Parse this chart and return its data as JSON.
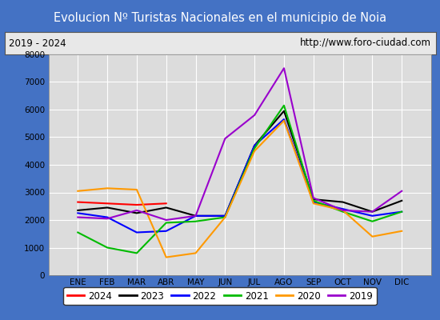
{
  "title": "Evolucion Nº Turistas Nacionales en el municipio de Noia",
  "subtitle_left": "2019 - 2024",
  "subtitle_right": "http://www.foro-ciudad.com",
  "title_bg_color": "#4472c4",
  "title_text_color": "#ffffff",
  "months": [
    "ENE",
    "FEB",
    "MAR",
    "ABR",
    "MAY",
    "JUN",
    "JUL",
    "AGO",
    "SEP",
    "OCT",
    "NOV",
    "DIC"
  ],
  "ylim": [
    0,
    8000
  ],
  "yticks": [
    0,
    1000,
    2000,
    3000,
    4000,
    5000,
    6000,
    7000,
    8000
  ],
  "series": {
    "2024": {
      "color": "#ff0000",
      "data": [
        2650,
        2600,
        2550,
        2600,
        null,
        null,
        null,
        null,
        null,
        null,
        null,
        null
      ]
    },
    "2023": {
      "color": "#000000",
      "data": [
        2350,
        2450,
        2250,
        2450,
        2150,
        2150,
        4700,
        5950,
        2750,
        2650,
        2300,
        2700
      ]
    },
    "2022": {
      "color": "#0000ff",
      "data": [
        2250,
        2100,
        1550,
        1600,
        2150,
        2150,
        4700,
        5650,
        2650,
        2400,
        2150,
        2300
      ]
    },
    "2021": {
      "color": "#00bb00",
      "data": [
        1550,
        1000,
        800,
        1900,
        1950,
        2100,
        4600,
        6150,
        2700,
        2300,
        1950,
        2300
      ]
    },
    "2020": {
      "color": "#ff9900",
      "data": [
        3050,
        3150,
        3100,
        650,
        800,
        2100,
        4500,
        5600,
        2600,
        2350,
        1400,
        1600
      ]
    },
    "2019": {
      "color": "#9900cc",
      "data": [
        2100,
        2050,
        2350,
        2000,
        2150,
        4950,
        5800,
        7500,
        2800,
        2350,
        2300,
        3050
      ]
    }
  },
  "legend_order": [
    "2024",
    "2023",
    "2022",
    "2021",
    "2020",
    "2019"
  ],
  "bg_color": "#e8e8e8",
  "plot_bg_color": "#e8e8e8",
  "chart_bg_color": "#dcdcdc",
  "grid_color": "#ffffff",
  "border_color": "#4472c4"
}
